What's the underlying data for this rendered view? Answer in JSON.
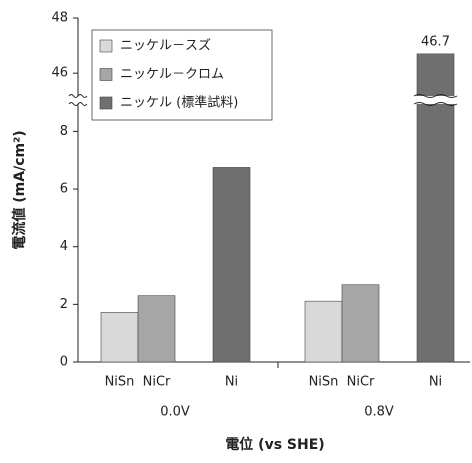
{
  "chart_data": {
    "type": "bar",
    "x_label": "電位 (vs SHE)",
    "y_label": "電流値 (mA/cm²)",
    "groups": [
      "0.0V",
      "0.8V"
    ],
    "series": [
      {
        "name": "ニッケル－スズ",
        "label": "NiSn",
        "color": "#d9d9d9",
        "values": [
          1.72,
          2.11
        ]
      },
      {
        "name": "ニッケル－クロム",
        "label": "NiCr",
        "color": "#a6a6a6",
        "values": [
          2.3,
          2.68
        ]
      },
      {
        "name": "ニッケル (標準試料)",
        "label": "Ni",
        "color": "#6f6f6f",
        "values": [
          6.75,
          46.7
        ]
      }
    ],
    "ylim": [
      0,
      48
    ],
    "y_break": [
      8.5,
      45.5
    ],
    "yticks": [
      0,
      2,
      4,
      6,
      8,
      46,
      48
    ],
    "legend": "upper left"
  }
}
